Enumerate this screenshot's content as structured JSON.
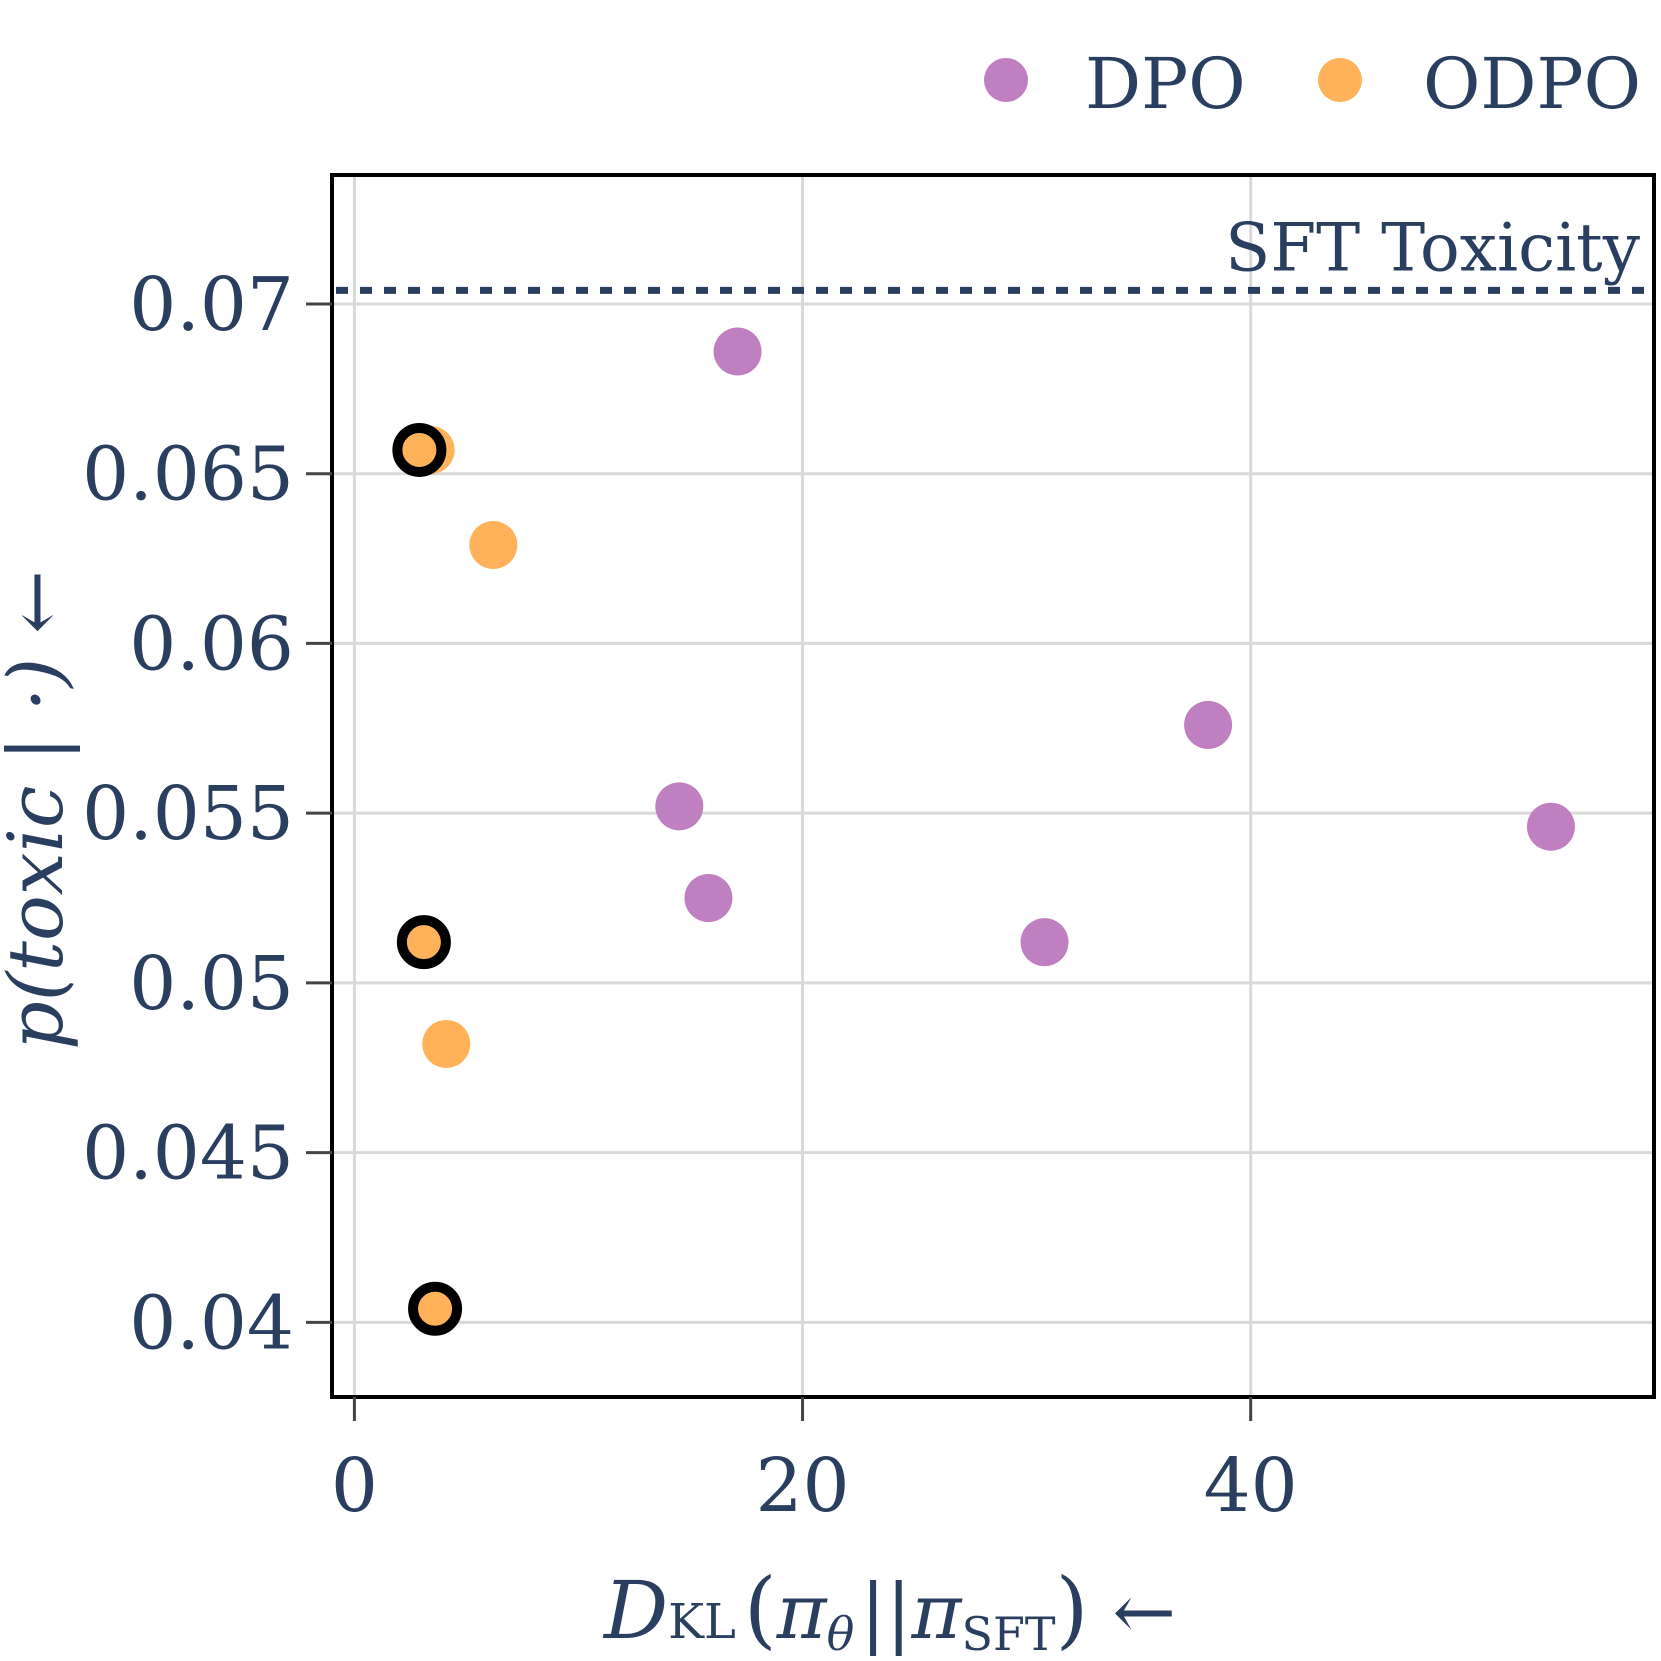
{
  "chart_data": {
    "type": "scatter",
    "title": "",
    "xlabel": {
      "main": "D",
      "sub": "KL",
      "open": "(",
      "arg1": "π",
      "arg1_sub": "θ",
      "sep": "||",
      "arg2": "π",
      "arg2_sub": "SFT",
      "close": ")",
      "arrow": "←"
    },
    "ylabel": {
      "text": "p(toxic | ·)",
      "arrow": "←"
    },
    "xlim": [
      -1,
      58
    ],
    "ylim": [
      0.0378,
      0.0738
    ],
    "xticks": [
      0,
      20,
      40
    ],
    "xtick_labels": [
      "0",
      "20",
      "40"
    ],
    "yticks": [
      0.04,
      0.045,
      0.05,
      0.055,
      0.06,
      0.065,
      0.07
    ],
    "ytick_labels": [
      "0.04",
      "0.045",
      "0.05",
      "0.055",
      "0.06",
      "0.065",
      "0.07"
    ],
    "grid": true,
    "legend_position": "top-right",
    "colors": {
      "DPO": "#bf7fc0",
      "ODPO": "#ffb25a",
      "text": "#2a3f5f",
      "grid": "#d9d9d9",
      "reference": "#2a3f5f"
    },
    "reference_line": {
      "label": "SFT Toxicity",
      "y": 0.0704,
      "style": "dotted"
    },
    "series": [
      {
        "name": "DPO",
        "points": [
          {
            "x": 17.1,
            "y": 0.0686
          },
          {
            "x": 14.5,
            "y": 0.0552
          },
          {
            "x": 15.8,
            "y": 0.0525
          },
          {
            "x": 30.8,
            "y": 0.0512
          },
          {
            "x": 38.1,
            "y": 0.0576
          },
          {
            "x": 53.4,
            "y": 0.0546
          }
        ]
      },
      {
        "name": "ODPO",
        "points": [
          {
            "x": 3.4,
            "y": 0.0657,
            "highlighted": false
          },
          {
            "x": 2.9,
            "y": 0.0657,
            "highlighted": true
          },
          {
            "x": 6.2,
            "y": 0.0629,
            "highlighted": false
          },
          {
            "x": 3.1,
            "y": 0.0512,
            "highlighted": true
          },
          {
            "x": 4.1,
            "y": 0.0482,
            "highlighted": false
          },
          {
            "x": 3.6,
            "y": 0.0404,
            "highlighted": true
          }
        ]
      }
    ]
  }
}
